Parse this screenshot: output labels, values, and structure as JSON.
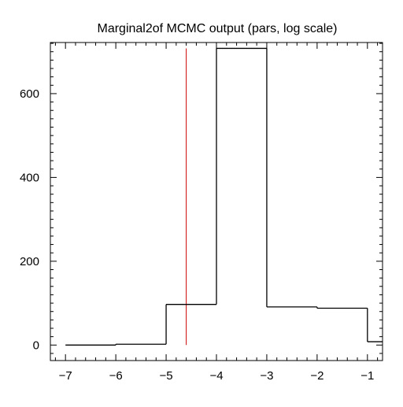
{
  "chart_data": {
    "type": "histogram",
    "title": "Marginal2of MCMC output (pars, log scale)",
    "xlabel": "",
    "ylabel": "",
    "xlim": [
      -7.3,
      -0.7
    ],
    "ylim": [
      -37,
      722
    ],
    "grid": false,
    "legend": "none",
    "x_ticks": [
      -7,
      -6,
      -5,
      -4,
      -3,
      -2,
      -1
    ],
    "x_tick_labels": [
      "−7",
      "−6",
      "−5",
      "−4",
      "−3",
      "−2",
      "−1"
    ],
    "y_ticks": [
      0,
      200,
      400,
      600
    ],
    "y_tick_labels": [
      "0",
      "200",
      "400",
      "600"
    ],
    "bins": [
      {
        "x0": -7,
        "x1": -6,
        "value": 0
      },
      {
        "x0": -6,
        "x1": -5,
        "value": 2
      },
      {
        "x0": -5,
        "x1": -4,
        "value": 97
      },
      {
        "x0": -4,
        "x1": -3,
        "value": 708
      },
      {
        "x0": -3,
        "x1": -2,
        "value": 91
      },
      {
        "x0": -2,
        "x1": -1,
        "value": 88
      },
      {
        "x0": -1,
        "x1": -0.7,
        "value": 8
      }
    ],
    "reference_line": {
      "x": -4.6,
      "y_range": [
        0,
        708
      ],
      "color": "#cc0000"
    },
    "colors": {
      "histogram": "#000000",
      "reference_line": "#cc0000",
      "frame": "#000000"
    }
  }
}
